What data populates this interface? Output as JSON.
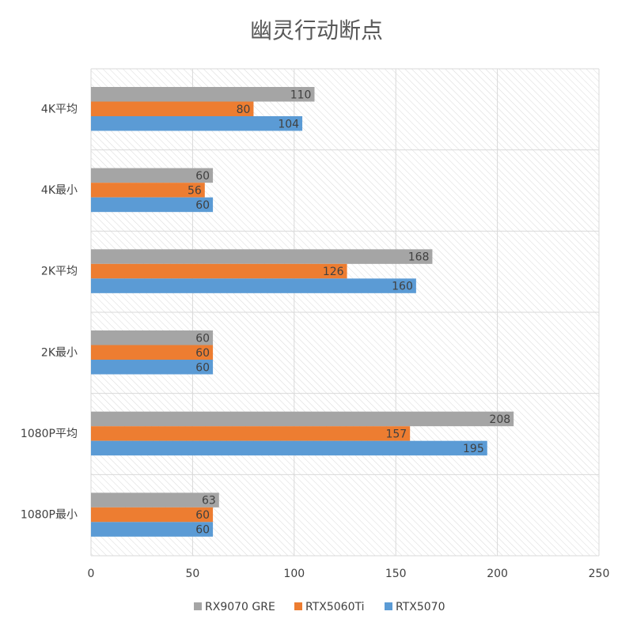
{
  "chart_data": {
    "type": "bar",
    "orientation": "horizontal",
    "title": "幽灵行动断点",
    "categories": [
      "4K平均",
      "4K最小",
      "2K平均",
      "2K最小",
      "1080P平均",
      "1080P最小"
    ],
    "series": [
      {
        "name": "RX9070 GRE",
        "color": "#a5a5a5",
        "values": [
          110,
          60,
          168,
          60,
          208,
          63
        ]
      },
      {
        "name": "RTX5060Ti",
        "color": "#ed7d31",
        "values": [
          80,
          56,
          126,
          60,
          157,
          60
        ]
      },
      {
        "name": "RTX5070",
        "color": "#5b9bd5",
        "values": [
          104,
          60,
          160,
          60,
          195,
          60
        ]
      }
    ],
    "xlim": [
      0,
      250
    ],
    "xticks": [
      0,
      50,
      100,
      150,
      200,
      250
    ],
    "grid": true,
    "legend": "bottom"
  }
}
